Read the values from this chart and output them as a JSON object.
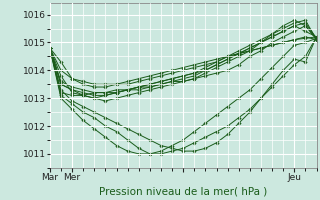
{
  "xlabel": "Pression niveau de la mer( hPa )",
  "bg_color": "#cce8df",
  "grid_color": "#ffffff",
  "line_color": "#1a5c1a",
  "marker_color": "#1a5c1a",
  "ylim": [
    1010.5,
    1016.4
  ],
  "yticks": [
    1011,
    1012,
    1013,
    1014,
    1015,
    1016
  ],
  "xlim": [
    0,
    48
  ],
  "xtick_positions": [
    0,
    4,
    24,
    44
  ],
  "xtick_labels": [
    "Mar",
    "Mer",
    "",
    "Jeu"
  ],
  "series": [
    [
      1014.8,
      1014.3,
      1013.7,
      1013.5,
      1013.4,
      1013.4,
      1013.5,
      1013.6,
      1013.7,
      1013.8,
      1013.9,
      1014.0,
      1014.1,
      1014.2,
      1014.3,
      1014.4,
      1014.5,
      1014.6,
      1014.7,
      1014.8,
      1014.9,
      1015.0,
      1015.1,
      1015.15,
      1015.2
    ],
    [
      1014.8,
      1014.0,
      1013.7,
      1013.6,
      1013.5,
      1013.5,
      1013.5,
      1013.5,
      1013.6,
      1013.7,
      1013.8,
      1013.9,
      1014.0,
      1014.1,
      1014.2,
      1014.3,
      1014.5,
      1014.6,
      1014.7,
      1014.8,
      1014.9,
      1015.0,
      1015.1,
      1015.2,
      1015.1
    ],
    [
      1014.8,
      1013.8,
      1013.2,
      1013.1,
      1013.0,
      1013.1,
      1013.2,
      1013.3,
      1013.4,
      1013.5,
      1013.6,
      1013.7,
      1013.8,
      1013.9,
      1014.0,
      1014.2,
      1014.4,
      1014.6,
      1014.8,
      1015.0,
      1015.2,
      1015.4,
      1015.6,
      1015.7,
      1015.15
    ],
    [
      1014.8,
      1013.2,
      1013.1,
      1013.1,
      1013.2,
      1013.2,
      1013.3,
      1013.3,
      1013.4,
      1013.4,
      1013.5,
      1013.6,
      1013.6,
      1013.7,
      1013.8,
      1013.9,
      1014.0,
      1014.2,
      1014.5,
      1014.7,
      1015.0,
      1015.2,
      1015.4,
      1015.6,
      1015.1
    ],
    [
      1014.8,
      1013.5,
      1013.3,
      1013.2,
      1013.1,
      1013.1,
      1013.2,
      1013.3,
      1013.4,
      1013.5,
      1013.6,
      1013.7,
      1013.8,
      1013.9,
      1014.1,
      1014.3,
      1014.5,
      1014.7,
      1014.9,
      1015.1,
      1015.3,
      1015.5,
      1015.7,
      1015.8,
      1015.1
    ],
    [
      1014.8,
      1013.1,
      1012.8,
      1012.5,
      1012.3,
      1012.0,
      1011.8,
      1011.5,
      1011.2,
      1011.0,
      1011.0,
      1011.1,
      1011.2,
      1011.4,
      1011.6,
      1011.8,
      1012.0,
      1012.3,
      1012.6,
      1013.0,
      1013.4,
      1013.8,
      1014.2,
      1014.5,
      1015.2
    ],
    [
      1014.8,
      1013.0,
      1012.6,
      1012.2,
      1011.9,
      1011.6,
      1011.3,
      1011.1,
      1011.0,
      1011.0,
      1011.1,
      1011.3,
      1011.5,
      1011.8,
      1012.1,
      1012.4,
      1012.7,
      1013.0,
      1013.3,
      1013.7,
      1014.1,
      1014.5,
      1014.9,
      1015.0,
      1015.15
    ],
    [
      1014.8,
      1013.3,
      1012.9,
      1012.7,
      1012.5,
      1012.3,
      1012.1,
      1011.9,
      1011.7,
      1011.5,
      1011.3,
      1011.2,
      1011.1,
      1011.1,
      1011.2,
      1011.4,
      1011.7,
      1012.1,
      1012.5,
      1013.0,
      1013.5,
      1014.0,
      1014.4,
      1014.3,
      1015.2
    ],
    [
      1014.8,
      1013.5,
      1013.3,
      1013.1,
      1013.0,
      1012.9,
      1013.0,
      1013.1,
      1013.2,
      1013.3,
      1013.4,
      1013.5,
      1013.6,
      1013.7,
      1013.9,
      1014.1,
      1014.3,
      1014.5,
      1014.7,
      1015.0,
      1015.3,
      1015.6,
      1015.8,
      1015.6,
      1015.15
    ],
    [
      1014.8,
      1013.6,
      1013.4,
      1013.3,
      1013.2,
      1013.2,
      1013.2,
      1013.3,
      1013.3,
      1013.4,
      1013.5,
      1013.6,
      1013.7,
      1013.8,
      1014.0,
      1014.2,
      1014.4,
      1014.6,
      1014.8,
      1015.0,
      1015.2,
      1015.4,
      1015.6,
      1015.4,
      1015.2
    ]
  ]
}
